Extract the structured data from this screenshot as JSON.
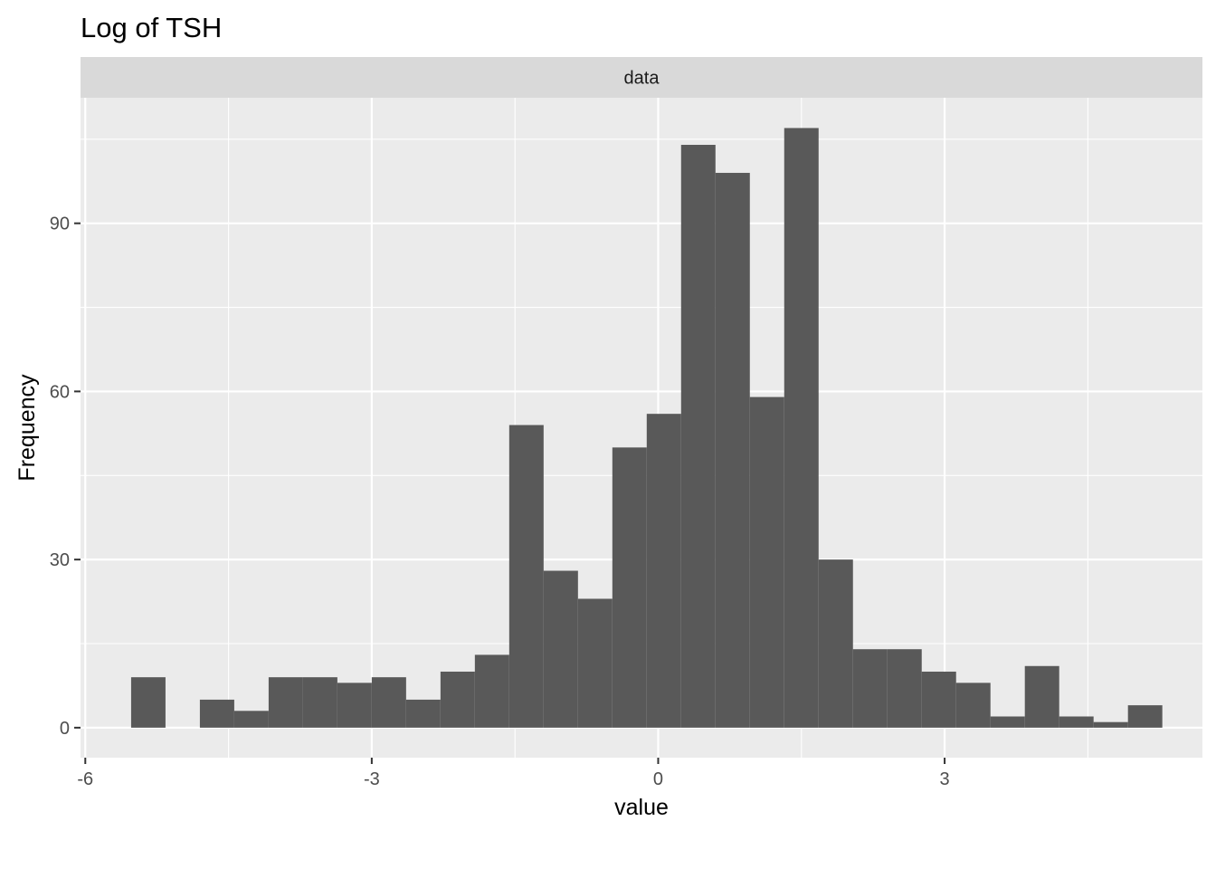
{
  "chart_data": {
    "type": "bar",
    "subtype": "histogram",
    "title": "Log of TSH",
    "facet_label": "data",
    "xlabel": "value",
    "ylabel": "Frequency",
    "xlim": [
      -6.05,
      5.7
    ],
    "ylim": [
      -5.35,
      112.4
    ],
    "x_ticks": [
      -6,
      -3,
      0,
      3
    ],
    "x_tick_labels": [
      "-6",
      "-3",
      "0",
      "3"
    ],
    "y_ticks": [
      0,
      30,
      60,
      90
    ],
    "y_tick_labels": [
      "0",
      "30",
      "60",
      "90"
    ],
    "grid": true,
    "bin_width": 0.36,
    "bins": [
      {
        "x0": -5.52,
        "x1": -5.16,
        "count": 9
      },
      {
        "x0": -4.8,
        "x1": -4.44,
        "count": 5
      },
      {
        "x0": -4.44,
        "x1": -4.08,
        "count": 3
      },
      {
        "x0": -4.08,
        "x1": -3.72,
        "count": 9
      },
      {
        "x0": -3.72,
        "x1": -3.36,
        "count": 9
      },
      {
        "x0": -3.36,
        "x1": -3.0,
        "count": 8
      },
      {
        "x0": -3.0,
        "x1": -2.64,
        "count": 9
      },
      {
        "x0": -2.64,
        "x1": -2.28,
        "count": 5
      },
      {
        "x0": -2.28,
        "x1": -1.92,
        "count": 10
      },
      {
        "x0": -1.92,
        "x1": -1.56,
        "count": 13
      },
      {
        "x0": -1.56,
        "x1": -1.2,
        "count": 54
      },
      {
        "x0": -1.2,
        "x1": -0.84,
        "count": 28
      },
      {
        "x0": -0.84,
        "x1": -0.48,
        "count": 23
      },
      {
        "x0": -0.48,
        "x1": -0.12,
        "count": 50
      },
      {
        "x0": -0.12,
        "x1": 0.24,
        "count": 56
      },
      {
        "x0": 0.24,
        "x1": 0.6,
        "count": 104
      },
      {
        "x0": 0.6,
        "x1": 0.96,
        "count": 99
      },
      {
        "x0": 0.96,
        "x1": 1.32,
        "count": 59
      },
      {
        "x0": 1.32,
        "x1": 1.68,
        "count": 107
      },
      {
        "x0": 1.68,
        "x1": 2.04,
        "count": 30
      },
      {
        "x0": 2.04,
        "x1": 2.4,
        "count": 14
      },
      {
        "x0": 2.4,
        "x1": 2.76,
        "count": 14
      },
      {
        "x0": 2.76,
        "x1": 3.12,
        "count": 10
      },
      {
        "x0": 3.12,
        "x1": 3.48,
        "count": 8
      },
      {
        "x0": 3.48,
        "x1": 3.84,
        "count": 2
      },
      {
        "x0": 3.84,
        "x1": 4.2,
        "count": 11
      },
      {
        "x0": 4.2,
        "x1": 4.56,
        "count": 2
      },
      {
        "x0": 4.56,
        "x1": 4.92,
        "count": 1
      },
      {
        "x0": 4.92,
        "x1": 5.28,
        "count": 4
      }
    ],
    "colors": {
      "bar": "#595959",
      "panel_background": "#ebebeb",
      "strip_background": "#d9d9d9",
      "grid": "#ffffff"
    }
  }
}
